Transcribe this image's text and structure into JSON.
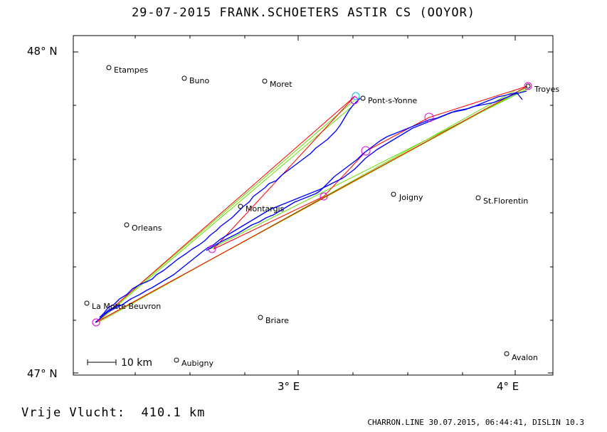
{
  "header": {
    "title": "29-07-2015   FRANK.SCHOETERS   ASTIR CS (OOYOR)"
  },
  "map": {
    "lat_labels": [
      "48° N",
      "47° N"
    ],
    "lon_labels": [
      "3° E",
      "4° E"
    ],
    "scale_bar_label": "10 km",
    "colors": {
      "track": "#0000ff",
      "legs_red": "#ff0000",
      "legs_green": "#66dd00",
      "turnpoint": "#dd00dd",
      "start": "#00bbdd",
      "frame": "#000000"
    },
    "places": [
      {
        "name": "Etampes"
      },
      {
        "name": "Buno"
      },
      {
        "name": "Moret"
      },
      {
        "name": "Pont-s-Yonne"
      },
      {
        "name": "Troyes"
      },
      {
        "name": "Montargis"
      },
      {
        "name": "Joigny"
      },
      {
        "name": "St.Florentin"
      },
      {
        "name": "Orleans"
      },
      {
        "name": "La Motte Beuvron"
      },
      {
        "name": "Briare"
      },
      {
        "name": "Aubigny"
      },
      {
        "name": "Avalon"
      }
    ]
  },
  "footer": {
    "distance": "Vrije Vlucht:  410.1 km",
    "credits": "CHARRON.LINE 30.07.2015, 06:44:41, DISLIN 10.3"
  }
}
